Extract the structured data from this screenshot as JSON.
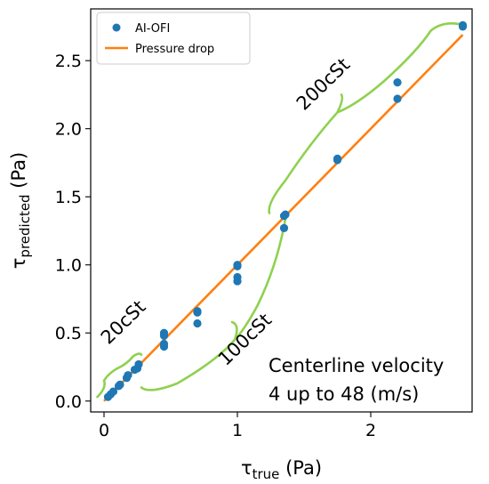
{
  "chart_data": {
    "type": "scatter",
    "xlabel": {
      "main": "τ",
      "sub": "true",
      "unit": " (Pa)"
    },
    "ylabel": {
      "main": "τ",
      "sub": "predicted",
      "unit": " (Pa)"
    },
    "xlim": [
      -0.1,
      2.76
    ],
    "ylim": [
      -0.08,
      2.88
    ],
    "xticks": [
      0,
      1,
      2
    ],
    "xtick_labels": [
      "0",
      "1",
      "2"
    ],
    "yticks": [
      0.0,
      0.5,
      1.0,
      1.5,
      2.0,
      2.5
    ],
    "ytick_labels": [
      "0.0",
      "0.5",
      "1.0",
      "1.5",
      "2.0",
      "2.5"
    ],
    "grid": false,
    "legend_position": "top-left",
    "series": [
      {
        "name": "AI-OFI",
        "kind": "scatter",
        "color": "#1f77b4",
        "points": [
          [
            0.03,
            0.03
          ],
          [
            0.05,
            0.05
          ],
          [
            0.07,
            0.07
          ],
          [
            0.11,
            0.11
          ],
          [
            0.12,
            0.12
          ],
          [
            0.17,
            0.17
          ],
          [
            0.18,
            0.19
          ],
          [
            0.23,
            0.23
          ],
          [
            0.25,
            0.24
          ],
          [
            0.26,
            0.27
          ],
          [
            0.45,
            0.4
          ],
          [
            0.45,
            0.42
          ],
          [
            0.45,
            0.48
          ],
          [
            0.45,
            0.5
          ],
          [
            0.7,
            0.57
          ],
          [
            0.7,
            0.65
          ],
          [
            0.7,
            0.66
          ],
          [
            1.0,
            0.88
          ],
          [
            1.0,
            0.91
          ],
          [
            1.0,
            0.99
          ],
          [
            1.0,
            1.0
          ],
          [
            1.35,
            1.27
          ],
          [
            1.35,
            1.36
          ],
          [
            1.36,
            1.37
          ],
          [
            1.75,
            1.77
          ],
          [
            1.75,
            1.78
          ],
          [
            2.2,
            2.22
          ],
          [
            2.2,
            2.34
          ],
          [
            2.69,
            2.75
          ],
          [
            2.69,
            2.76
          ]
        ]
      },
      {
        "name": "Pressure drop",
        "kind": "line",
        "color": "#ff7f0e",
        "x": [
          0.0,
          2.69
        ],
        "y": [
          0.0,
          2.69
        ]
      }
    ],
    "brackets": [
      {
        "label": "20cSt",
        "x_range": [
          0.0,
          0.28
        ],
        "color": "#8fd14f"
      },
      {
        "label": "100cSt",
        "x_range": [
          0.28,
          1.36
        ],
        "color": "#8fd14f"
      },
      {
        "label": "200cSt",
        "x_range": [
          1.23,
          2.69
        ],
        "color": "#8fd14f"
      }
    ],
    "annotation": [
      "Centerline velocity",
      "4 up to 48 (m/s)"
    ]
  }
}
